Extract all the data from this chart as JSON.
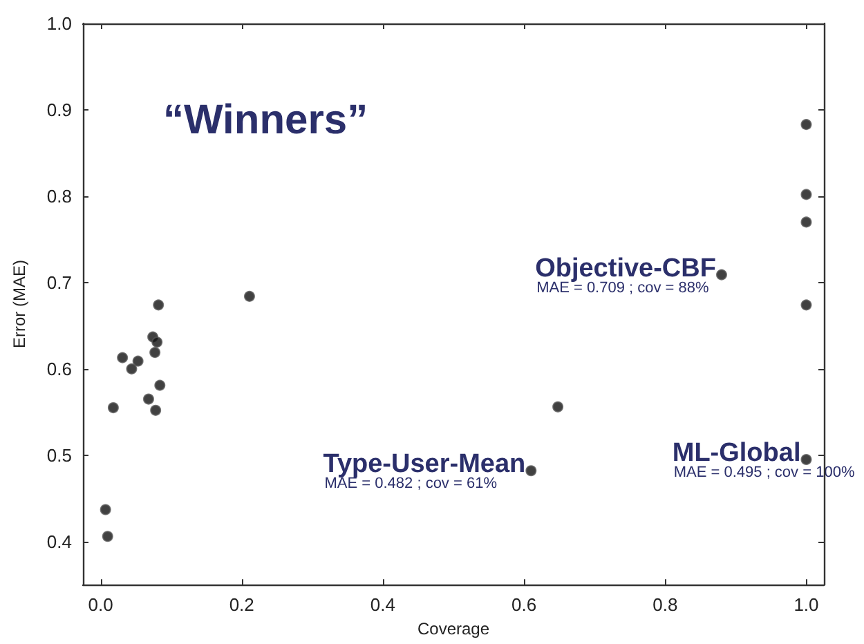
{
  "chart_data": {
    "type": "scatter",
    "xlabel": "Coverage",
    "ylabel": "Error (MAE)",
    "x": [
      0.082,
      0.211,
      0.074,
      0.08,
      0.077,
      0.031,
      0.053,
      0.044,
      0.084,
      0.068,
      0.018,
      0.078,
      0.007,
      0.01,
      0.88,
      0.648,
      0.61,
      1.0,
      1.0,
      1.0,
      1.0,
      1.0
    ],
    "values": [
      0.674,
      0.684,
      0.637,
      0.631,
      0.619,
      0.613,
      0.609,
      0.6,
      0.581,
      0.565,
      0.555,
      0.552,
      0.437,
      0.406,
      0.709,
      0.556,
      0.482,
      0.883,
      0.802,
      0.77,
      0.674,
      0.495
    ],
    "color": "#111111",
    "marker": "circle",
    "grid": false,
    "xlim": [
      -0.025,
      1.025
    ],
    "xticks": [
      {
        "value": 0,
        "label": "0.0"
      },
      0.2,
      0.4,
      0.6,
      0.8,
      {
        "value": 1,
        "label": "1.0"
      }
    ],
    "ylim": [
      0.35,
      1.0
    ],
    "yticks": [
      0.4,
      0.5,
      0.6,
      0.7,
      0.8,
      0.9,
      {
        "value": 1,
        "label": "1.0"
      }
    ],
    "annotations": [
      "“Winners”",
      {
        "text": "Objective-CBF",
        "x": 0.88,
        "y": 0.709
      },
      {
        "text": "MAE = 0.709 ; cov = 88%",
        "x": 0.88,
        "y": 0.709
      },
      {
        "text": "Type-User-Mean",
        "x": 0.61,
        "y": 0.482
      },
      {
        "text": "MAE = 0.482 ; cov = 61%",
        "x": 0.61,
        "y": 0.482
      },
      {
        "text": "ML-Global",
        "x": 1.0,
        "y": 0.495
      },
      {
        "text": "MAE = 0.495 ; cov = 100%",
        "x": 1.0,
        "y": 0.495
      }
    ]
  }
}
